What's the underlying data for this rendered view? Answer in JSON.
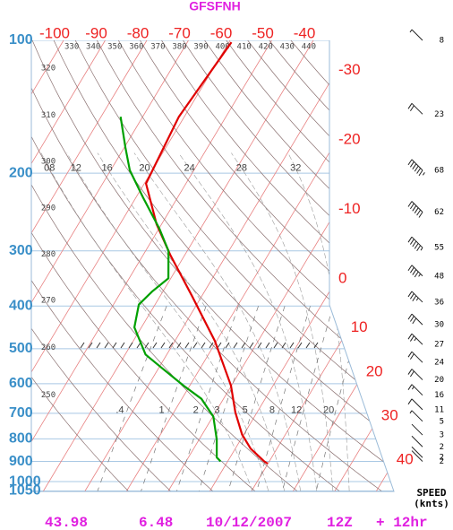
{
  "chart_data": {
    "type": "skewt",
    "title": "GFSFNH",
    "pressure_ticks": [
      100,
      200,
      300,
      400,
      500,
      600,
      700,
      800,
      900,
      1000,
      1050
    ],
    "temperature_ticks": [
      -100,
      -90,
      -80,
      -70,
      -60,
      -50,
      -40,
      -30,
      -20,
      -10,
      0,
      10,
      20,
      30,
      40
    ],
    "dry_adiabat_labels": [
      250,
      260,
      270,
      280,
      290,
      300,
      310,
      320,
      330,
      340,
      350,
      360,
      370,
      380,
      390,
      400,
      410,
      420,
      430,
      440
    ],
    "moist_adiabat_labels": [
      {
        "value": 8,
        "label": "08"
      },
      12,
      16,
      20,
      24,
      28,
      32
    ],
    "mixing_ratio_labels": [
      {
        "value": 0.4,
        "label": ".4"
      },
      1,
      2,
      3,
      5,
      8,
      12,
      20
    ],
    "series": [
      {
        "color": "#e00000",
        "pressure": [
          101,
          149,
          211,
          261,
          307,
          380,
          480,
          606,
          697,
          782,
          842,
          900,
          910
        ],
        "values": [
          -59.4,
          -61.3,
          -59.6,
          -51.2,
          -43.4,
          -32.3,
          -20.4,
          -10.1,
          -5.2,
          -0.4,
          3.7,
          8.8,
          9.9
        ]
      },
      {
        "color": "#00a000",
        "pressure": [
          149,
          175,
          197,
          227,
          267,
          300,
          346,
          371,
          397,
          447,
          515,
          551,
          606,
          649,
          712,
          802,
          881,
          900
        ],
        "values": [
          -75.3,
          -69.7,
          -65.4,
          -58.3,
          -49.9,
          -44.5,
          -40.6,
          -42.6,
          -43.9,
          -41.7,
          -35.1,
          -29.5,
          -21.5,
          -15.3,
          -9.9,
          -5.8,
          -3.2,
          -1.7
        ]
      }
    ],
    "wind": {
      "pressure": [
        100,
        147,
        197,
        245,
        295,
        342,
        392,
        441,
        489,
        537,
        588,
        637,
        687,
        730,
        784,
        834,
        882,
        900
      ],
      "speed": [
        8,
        23,
        68,
        62,
        55,
        48,
        36,
        30,
        27,
        24,
        20,
        16,
        11,
        5,
        3,
        2,
        2,
        2
      ]
    },
    "speed_label": "SPEED",
    "speed_unit": "(knts)",
    "footer": [
      "43.98",
      "6.48",
      "10/12/2007",
      "12Z",
      "+ 12hr"
    ]
  }
}
